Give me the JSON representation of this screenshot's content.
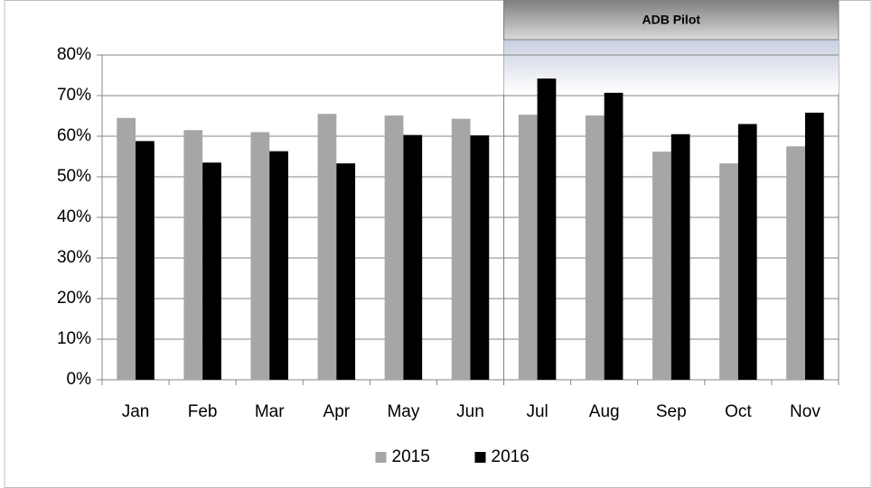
{
  "chart_data": {
    "type": "bar",
    "categories": [
      "Jan",
      "Feb",
      "Mar",
      "Apr",
      "May",
      "Jun",
      "Jul",
      "Aug",
      "Sep",
      "Oct",
      "Nov"
    ],
    "series": [
      {
        "name": "2015",
        "color": "#a6a6a6",
        "values": [
          64.5,
          61.5,
          61,
          65.5,
          65.1,
          64.3,
          65.3,
          65.1,
          56.2,
          53.3,
          57.5
        ]
      },
      {
        "name": "2016",
        "color": "#000000",
        "values": [
          58.8,
          53.5,
          56.3,
          53.3,
          60.3,
          60.2,
          74.2,
          70.7,
          60.5,
          63,
          65.8
        ]
      }
    ],
    "ylim": [
      0,
      80
    ],
    "yticks": [
      {
        "value": 0,
        "label": "0%"
      },
      {
        "value": 10,
        "label": "10%"
      },
      {
        "value": 20,
        "label": "20%"
      },
      {
        "value": 30,
        "label": "30%"
      },
      {
        "value": 40,
        "label": "40%"
      },
      {
        "value": 50,
        "label": "50%"
      },
      {
        "value": 60,
        "label": "60%"
      },
      {
        "value": 70,
        "label": "70%"
      },
      {
        "value": 80,
        "label": "80%"
      }
    ],
    "grid": true,
    "legend": "bottom",
    "annotation": {
      "text": "ADB Pilot",
      "x_start": "Jul",
      "x_end": "Nov"
    }
  }
}
